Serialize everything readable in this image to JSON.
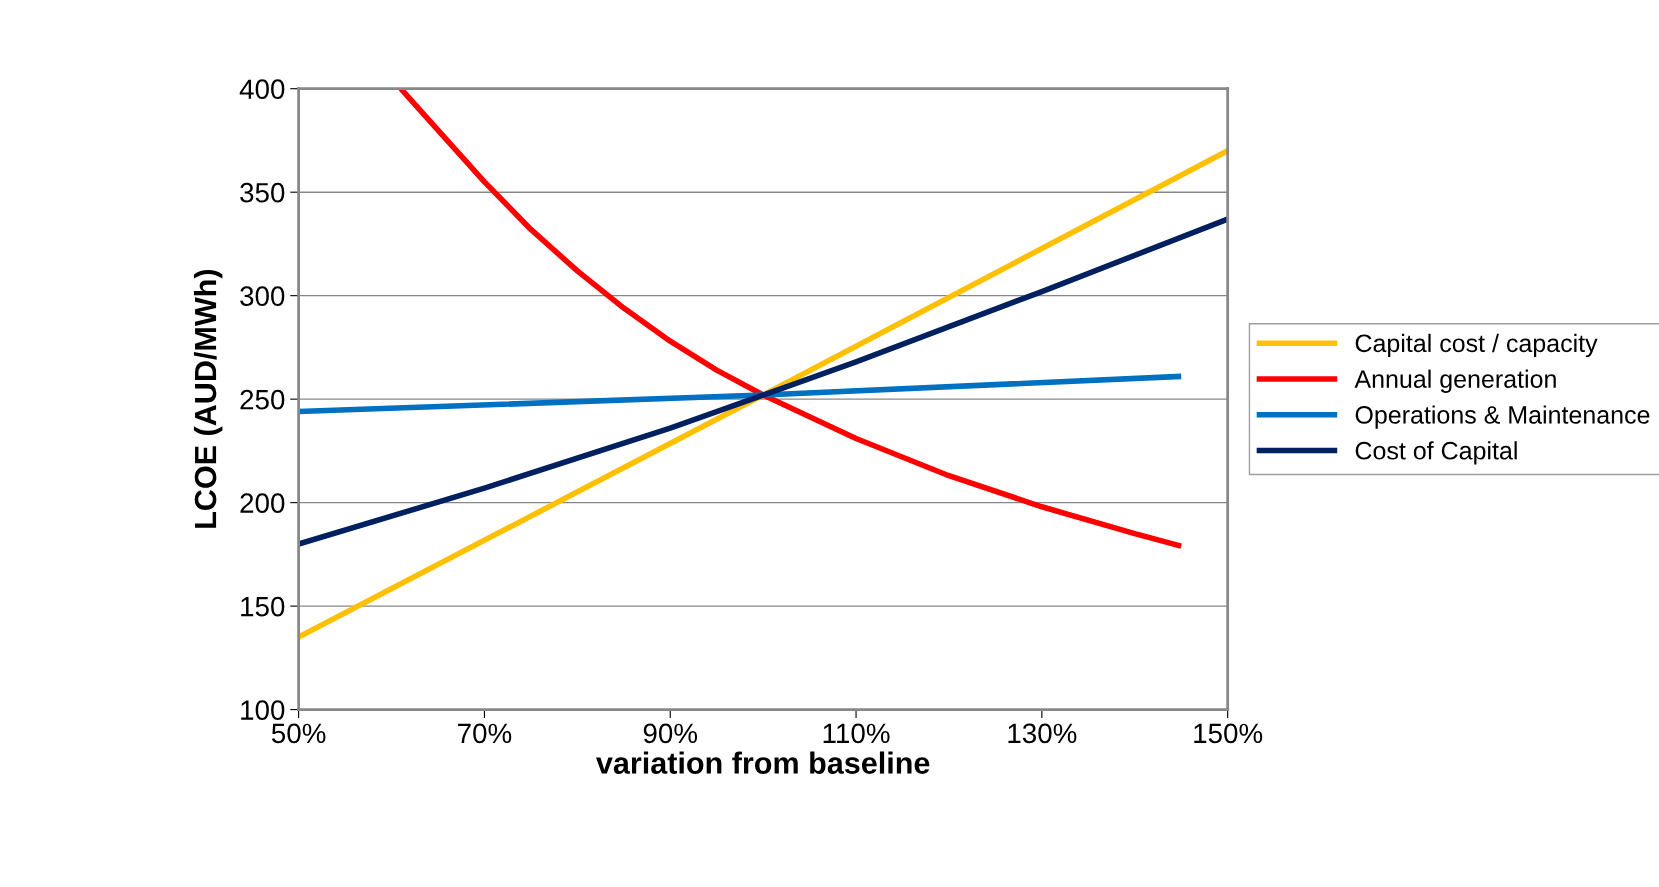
{
  "chart_data": {
    "type": "line",
    "xlabel": "variation from baseline",
    "ylabel": "LCOE (AUD/MWh)",
    "xlim": [
      50,
      150
    ],
    "ylim": [
      100,
      400
    ],
    "xticks": [
      {
        "value": 50,
        "label": "50%"
      },
      {
        "value": 70,
        "label": "70%"
      },
      {
        "value": 90,
        "label": "90%"
      },
      {
        "value": 110,
        "label": "110%"
      },
      {
        "value": 130,
        "label": "130%"
      },
      {
        "value": 150,
        "label": "150%"
      }
    ],
    "yticks": [
      100,
      150,
      200,
      250,
      300,
      350,
      400
    ],
    "grid": "y",
    "legend": "right",
    "marker": "none",
    "line_style": "solid",
    "series": [
      {
        "name": "Capital cost / capacity",
        "color": "#ffc000",
        "x": [
          50,
          100,
          150
        ],
        "values": [
          135,
          252,
          370
        ]
      },
      {
        "name": "Annual generation",
        "color": "#ff0000",
        "x": [
          61,
          65,
          70,
          75,
          80,
          85,
          90,
          95,
          100,
          110,
          120,
          130,
          140,
          145
        ],
        "values": [
          400,
          380,
          355,
          332,
          312,
          294,
          278,
          264,
          252,
          231,
          213,
          198,
          185,
          179
        ]
      },
      {
        "name": "Operations & Maintenance",
        "color": "#0070c0",
        "x": [
          50,
          100,
          145
        ],
        "values": [
          244,
          252,
          261
        ]
      },
      {
        "name": "Cost of Capital",
        "color": "#002060",
        "x": [
          50,
          70,
          90,
          100,
          110,
          130,
          150
        ],
        "values": [
          180,
          207,
          236,
          252,
          268,
          302,
          337
        ]
      }
    ]
  }
}
